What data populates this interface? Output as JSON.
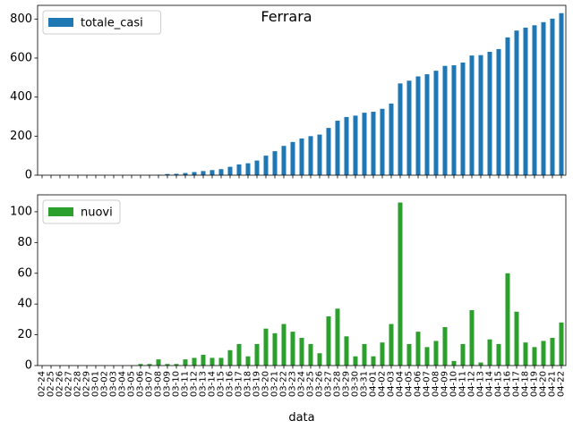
{
  "figure": {
    "title": "Ferrara"
  },
  "chart_data": [
    {
      "type": "bar",
      "categories": [
        "02-24",
        "02-25",
        "02-26",
        "02-27",
        "02-28",
        "02-29",
        "03-01",
        "03-02",
        "03-03",
        "03-04",
        "03-05",
        "03-06",
        "03-07",
        "03-08",
        "03-09",
        "03-10",
        "03-11",
        "03-12",
        "03-13",
        "03-14",
        "03-15",
        "03-16",
        "03-17",
        "03-18",
        "03-19",
        "03-20",
        "03-21",
        "03-22",
        "03-23",
        "03-24",
        "03-25",
        "03-26",
        "03-27",
        "03-28",
        "03-29",
        "03-30",
        "03-31",
        "04-01",
        "04-02",
        "04-03",
        "04-04",
        "04-05",
        "04-06",
        "04-07",
        "04-08",
        "04-09",
        "04-10",
        "04-11",
        "04-12",
        "04-13",
        "04-14",
        "04-15",
        "04-16",
        "04-17",
        "04-18",
        "04-19",
        "04-20",
        "04-21",
        "04-22"
      ],
      "series": [
        {
          "name": "totale_casi",
          "color": "#1f77b4",
          "values": [
            0,
            0,
            0,
            0,
            0,
            0,
            0,
            0,
            0,
            0,
            0,
            0,
            1,
            2,
            6,
            7,
            11,
            16,
            21,
            26,
            31,
            43,
            55,
            61,
            75,
            100,
            123,
            150,
            170,
            188,
            200,
            208,
            242,
            279,
            298,
            305,
            320,
            325,
            340,
            367,
            470,
            484,
            506,
            517,
            535,
            560,
            563,
            577,
            613,
            615,
            632,
            646,
            706,
            741,
            756,
            768,
            784,
            802,
            830
          ]
        }
      ],
      "xlabel": "",
      "ylabel": "",
      "ylim": [
        0,
        870
      ],
      "yticks": [
        0,
        200,
        400,
        600,
        800
      ],
      "legend": "upper left",
      "grid": false,
      "show_xticklabels": false
    },
    {
      "type": "bar",
      "categories": [
        "02-24",
        "02-25",
        "02-26",
        "02-27",
        "02-28",
        "02-29",
        "03-01",
        "03-02",
        "03-03",
        "03-04",
        "03-05",
        "03-06",
        "03-07",
        "03-08",
        "03-09",
        "03-10",
        "03-11",
        "03-12",
        "03-13",
        "03-14",
        "03-15",
        "03-16",
        "03-17",
        "03-18",
        "03-19",
        "03-20",
        "03-21",
        "03-22",
        "03-23",
        "03-24",
        "03-25",
        "03-26",
        "03-27",
        "03-28",
        "03-29",
        "03-30",
        "03-31",
        "04-01",
        "04-02",
        "04-03",
        "04-04",
        "04-05",
        "04-06",
        "04-07",
        "04-08",
        "04-09",
        "04-10",
        "04-11",
        "04-12",
        "04-13",
        "04-14",
        "04-15",
        "04-16",
        "04-17",
        "04-18",
        "04-19",
        "04-20",
        "04-21",
        "04-22"
      ],
      "series": [
        {
          "name": "nuovi",
          "color": "#2ca02c",
          "values": [
            0,
            0,
            0,
            0,
            0,
            0,
            0,
            0,
            0,
            0,
            0,
            1,
            1,
            4,
            1,
            1,
            4,
            5,
            7,
            5,
            5,
            10,
            14,
            6,
            14,
            24,
            21,
            27,
            22,
            18,
            14,
            8,
            32,
            37,
            19,
            6,
            14,
            6,
            15,
            27,
            106,
            14,
            22,
            12,
            16,
            25,
            3,
            14,
            36,
            2,
            17,
            14,
            60,
            35,
            15,
            12,
            16,
            18,
            28
          ]
        }
      ],
      "xlabel": "data",
      "ylabel": "",
      "ylim": [
        0,
        111
      ],
      "yticks": [
        0,
        20,
        40,
        60,
        80,
        100
      ],
      "legend": "upper left",
      "grid": false,
      "show_xticklabels": true
    }
  ]
}
